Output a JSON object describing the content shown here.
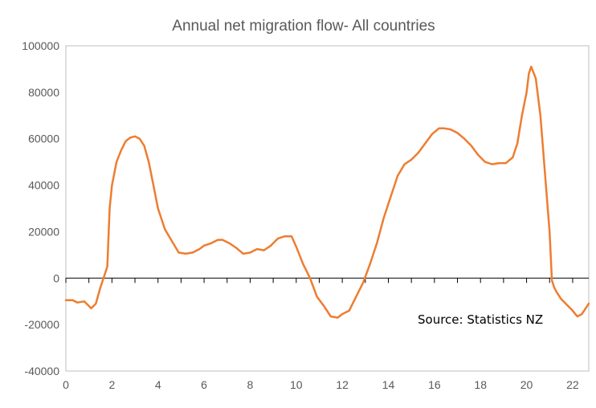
{
  "chart_data": {
    "type": "line",
    "title": "Annual net migration flow- All countries",
    "annotation": "Source: Statistics NZ",
    "xlabel": "",
    "ylabel": "",
    "xlim": [
      0,
      22.7
    ],
    "ylim": [
      -40000,
      100000
    ],
    "xticks": [
      0,
      2,
      4,
      6,
      8,
      10,
      12,
      14,
      16,
      18,
      20,
      22
    ],
    "yticks": [
      -40000,
      -20000,
      0,
      20000,
      40000,
      60000,
      80000,
      100000
    ],
    "grid": false,
    "legend": "none",
    "series": [
      {
        "color": "#ED7D31",
        "x": [
          0.0,
          0.3,
          0.5,
          0.8,
          1.0,
          1.1,
          1.3,
          1.5,
          1.7,
          1.8,
          1.9,
          2.0,
          2.2,
          2.4,
          2.6,
          2.8,
          3.0,
          3.2,
          3.4,
          3.6,
          3.8,
          4.0,
          4.3,
          4.6,
          4.9,
          5.2,
          5.5,
          5.8,
          6.0,
          6.3,
          6.6,
          6.8,
          7.1,
          7.4,
          7.7,
          8.0,
          8.3,
          8.6,
          8.9,
          9.2,
          9.5,
          9.8,
          10.0,
          10.3,
          10.6,
          10.9,
          11.2,
          11.5,
          11.8,
          12.0,
          12.3,
          12.6,
          12.9,
          13.2,
          13.5,
          13.8,
          14.1,
          14.4,
          14.7,
          15.0,
          15.3,
          15.6,
          15.9,
          16.2,
          16.4,
          16.7,
          17.0,
          17.3,
          17.6,
          17.9,
          18.2,
          18.5,
          18.8,
          19.1,
          19.4,
          19.6,
          19.8,
          20.0,
          20.1,
          20.2,
          20.4,
          20.6,
          20.8,
          21.0,
          21.1,
          21.2,
          21.3,
          21.5,
          21.8,
          22.0,
          22.2,
          22.4,
          22.7
        ],
        "y": [
          -9500,
          -9500,
          -10500,
          -10000,
          -12000,
          -13000,
          -11000,
          -4000,
          2000,
          5000,
          30000,
          40000,
          50000,
          55000,
          59000,
          60500,
          61000,
          60000,
          57000,
          50000,
          40000,
          30000,
          21000,
          16000,
          11000,
          10500,
          11000,
          12500,
          14000,
          15000,
          16500,
          16500,
          15000,
          13000,
          10500,
          11000,
          12500,
          12000,
          14000,
          17000,
          18000,
          18000,
          13500,
          6000,
          0,
          -8000,
          -12000,
          -16500,
          -17000,
          -15500,
          -14000,
          -8000,
          -2000,
          6000,
          15000,
          26000,
          35000,
          44000,
          49000,
          51000,
          54000,
          58000,
          62000,
          64500,
          64500,
          64000,
          62500,
          60000,
          57000,
          53000,
          50000,
          49000,
          49500,
          49500,
          52000,
          58000,
          70000,
          80000,
          88000,
          91000,
          86000,
          70000,
          45000,
          20000,
          -1000,
          -4000,
          -6000,
          -9000,
          -12000,
          -14000,
          -16500,
          -15500,
          -11000
        ]
      }
    ]
  }
}
